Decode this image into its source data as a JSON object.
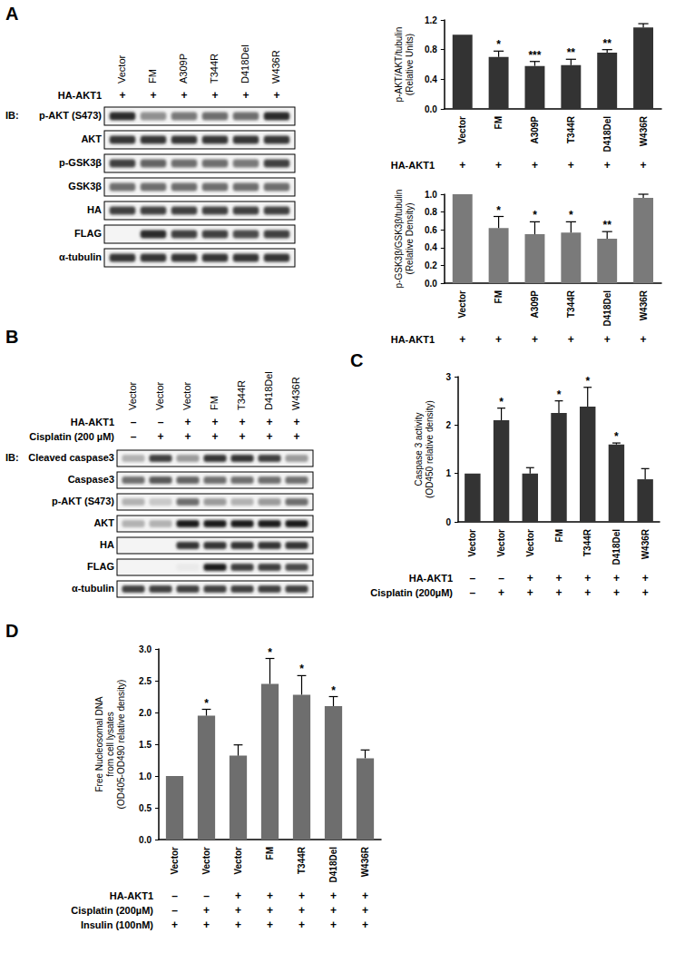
{
  "panel_labels": [
    "A",
    "B",
    "C",
    "D"
  ],
  "blots": [
    {
      "panel": "A",
      "lanes": [
        "Vector",
        "FM",
        "A309P",
        "T344R",
        "D418Del",
        "W436R"
      ],
      "conditions": [
        {
          "label": "HA-AKT1",
          "marks": [
            "+",
            "+",
            "+",
            "+",
            "+",
            "+"
          ]
        }
      ],
      "ib_label": "IB:",
      "rows": [
        {
          "label": "p-AKT (S473)",
          "intensity": [
            0.9,
            0.45,
            0.55,
            0.6,
            0.6,
            0.9
          ]
        },
        {
          "label": "AKT",
          "intensity": [
            0.85,
            0.85,
            0.85,
            0.85,
            0.85,
            0.85
          ]
        },
        {
          "label": "p-GSK3β",
          "intensity": [
            0.8,
            0.65,
            0.6,
            0.6,
            0.55,
            0.8
          ]
        },
        {
          "label": "GSK3β",
          "intensity": [
            0.6,
            0.6,
            0.6,
            0.6,
            0.6,
            0.6
          ]
        },
        {
          "label": "HA",
          "intensity": [
            0.8,
            0.8,
            0.8,
            0.8,
            0.8,
            0.8
          ]
        },
        {
          "label": "FLAG",
          "intensity": [
            0,
            0.9,
            0.8,
            0.8,
            0.75,
            0.8
          ]
        },
        {
          "label": "α-tubulin",
          "intensity": [
            0.85,
            0.85,
            0.85,
            0.85,
            0.85,
            0.85
          ]
        }
      ]
    },
    {
      "panel": "B",
      "lanes": [
        "Vector",
        "Vector",
        "Vector",
        "FM",
        "T344R",
        "D418Del",
        "W436R"
      ],
      "conditions": [
        {
          "label": "HA-AKT1",
          "marks": [
            "–",
            "–",
            "+",
            "+",
            "+",
            "+",
            "+"
          ]
        },
        {
          "label": "Cisplatin (200 µM)",
          "marks": [
            "–",
            "+",
            "+",
            "+",
            "+",
            "+",
            "+"
          ]
        }
      ],
      "ib_label": "IB:",
      "rows": [
        {
          "label": "Cleaved caspase3",
          "intensity": [
            0.3,
            0.8,
            0.4,
            0.85,
            0.85,
            0.8,
            0.4
          ]
        },
        {
          "label": "Caspase3",
          "intensity": [
            0.6,
            0.7,
            0.65,
            0.6,
            0.6,
            0.6,
            0.6
          ]
        },
        {
          "label": "p-AKT (S473)",
          "intensity": [
            0.3,
            0.2,
            0.6,
            0.4,
            0.3,
            0.4,
            0.6
          ]
        },
        {
          "label": "AKT",
          "intensity": [
            0.3,
            0.3,
            0.95,
            0.95,
            0.95,
            0.95,
            0.95
          ]
        },
        {
          "label": "HA",
          "intensity": [
            0,
            0,
            0.85,
            0.85,
            0.85,
            0.85,
            0.85
          ]
        },
        {
          "label": "FLAG",
          "intensity": [
            0,
            0,
            0.05,
            0.95,
            0.8,
            0.8,
            0.75
          ]
        },
        {
          "label": "α-tubulin",
          "intensity": [
            0.8,
            0.8,
            0.8,
            0.8,
            0.8,
            0.8,
            0.8
          ]
        }
      ]
    }
  ],
  "chart_data": [
    {
      "panel": "A",
      "type": "bar",
      "y_label": "p-AKT/AKT/tubulin\n(Relative Units)",
      "categories": [
        "Vector",
        "FM",
        "A309P",
        "T344R",
        "D418Del",
        "W436R"
      ],
      "values": [
        1.0,
        0.7,
        0.58,
        0.59,
        0.76,
        1.1
      ],
      "error": [
        0,
        0.08,
        0.06,
        0.08,
        0.04,
        0.05
      ],
      "significance": [
        null,
        "*",
        "***",
        "**",
        "**",
        null
      ],
      "conditions": [
        {
          "label": "HA-AKT1",
          "marks": [
            "+",
            "+",
            "+",
            "+",
            "+",
            "+"
          ]
        }
      ],
      "ylim": [
        0,
        1.2
      ],
      "yticks": [
        {
          "value": 0,
          "label": "0.0"
        },
        {
          "value": 0.4,
          "label": "0.4"
        },
        {
          "value": 0.8,
          "label": "0.8"
        },
        {
          "value": 1.2,
          "label": "1.2"
        }
      ],
      "color": "#333333",
      "grid": false
    },
    {
      "panel": "A",
      "type": "bar",
      "y_label": "p-GSK3β/GSK3β/tubulin\n(Relative Density)",
      "categories": [
        "Vector",
        "FM",
        "A309P",
        "T344R",
        "D418Del",
        "W436R"
      ],
      "values": [
        1.0,
        0.62,
        0.55,
        0.57,
        0.5,
        0.96
      ],
      "error": [
        0,
        0.13,
        0.14,
        0.12,
        0.08,
        0.04
      ],
      "significance": [
        null,
        "*",
        "*",
        "*",
        "**",
        null
      ],
      "conditions": [
        {
          "label": "HA-AKT1",
          "marks": [
            "+",
            "+",
            "+",
            "+",
            "+",
            "+"
          ]
        }
      ],
      "ylim": [
        0,
        1.0
      ],
      "yticks": [
        {
          "value": 0,
          "label": "0.0"
        },
        {
          "value": 0.2,
          "label": "0.2"
        },
        {
          "value": 0.4,
          "label": "0.4"
        },
        {
          "value": 0.6,
          "label": "0.6"
        },
        {
          "value": 0.8,
          "label": "0.8"
        },
        {
          "value": 1.0,
          "label": "1.0"
        }
      ],
      "color": "#7a7a7a",
      "grid": false
    },
    {
      "panel": "C",
      "type": "bar",
      "y_label": "Caspase 3 activity\n(OD450 relative density)",
      "categories": [
        "Vector",
        "Vector",
        "Vector",
        "FM",
        "T344R",
        "D418Del",
        "W436R"
      ],
      "values": [
        1.0,
        2.1,
        1.0,
        2.25,
        2.38,
        1.6,
        0.88
      ],
      "error": [
        0,
        0.25,
        0.12,
        0.25,
        0.4,
        0.03,
        0.22
      ],
      "significance": [
        null,
        "*",
        null,
        "*",
        "*",
        "*",
        null
      ],
      "conditions": [
        {
          "label": "HA-AKT1",
          "marks": [
            "–",
            "–",
            "+",
            "+",
            "+",
            "+",
            "+"
          ]
        },
        {
          "label": "Cisplatin (200µM)",
          "marks": [
            "–",
            "+",
            "+",
            "+",
            "+",
            "+",
            "+"
          ]
        }
      ],
      "ylim": [
        0,
        3
      ],
      "yticks": [
        0,
        1,
        2,
        3
      ],
      "color": "#333333",
      "grid": false
    },
    {
      "panel": "D",
      "type": "bar",
      "y_label": "Free Nucleosomal DNA\nfrom cell lysates\n(OD405-OD490 relative density)",
      "categories": [
        "Vector",
        "Vector",
        "Vector",
        "FM",
        "T344R",
        "D418Del",
        "W436R"
      ],
      "values": [
        1.0,
        1.95,
        1.32,
        2.45,
        2.28,
        2.1,
        1.28
      ],
      "error": [
        0,
        0.1,
        0.17,
        0.4,
        0.3,
        0.15,
        0.13
      ],
      "significance": [
        null,
        "*",
        null,
        "*",
        "*",
        "*",
        null
      ],
      "conditions": [
        {
          "label": "HA-AKT1",
          "marks": [
            "–",
            "–",
            "+",
            "+",
            "+",
            "+",
            "+"
          ]
        },
        {
          "label": "Cisplatin (200µM)",
          "marks": [
            "–",
            "+",
            "+",
            "+",
            "+",
            "+",
            "+"
          ]
        },
        {
          "label": "Insulin (100nM)",
          "marks": [
            "+",
            "+",
            "+",
            "+",
            "+",
            "+",
            "+"
          ]
        }
      ],
      "ylim": [
        0,
        3.0
      ],
      "yticks": [
        {
          "value": 0,
          "label": "0.0"
        },
        {
          "value": 0.5,
          "label": "0.5"
        },
        {
          "value": 1.0,
          "label": "1.0"
        },
        {
          "value": 1.5,
          "label": "1.5"
        },
        {
          "value": 2.0,
          "label": "2.0"
        },
        {
          "value": 2.5,
          "label": "2.5"
        },
        {
          "value": 3.0,
          "label": "3.0"
        }
      ],
      "color": "#6e6e6e",
      "grid": false
    }
  ]
}
